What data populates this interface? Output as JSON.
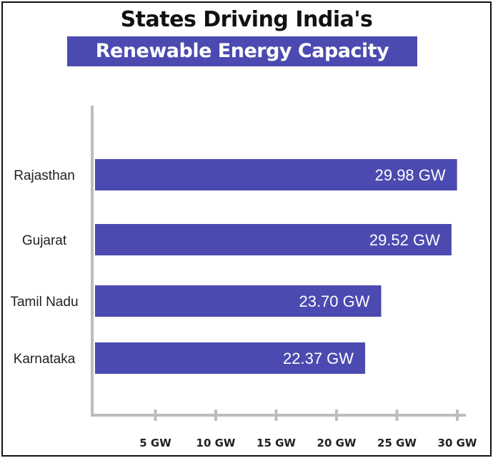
{
  "chart_data": {
    "type": "bar",
    "orientation": "horizontal",
    "title": "States Driving India's",
    "subtitle": "Renewable Energy Capacity",
    "categories": [
      "Rajasthan",
      "Gujarat",
      "Tamil Nadu",
      "Karnataka"
    ],
    "values": [
      29.98,
      29.52,
      23.7,
      22.37
    ],
    "value_labels": [
      "29.98 GW",
      "29.52 GW",
      "23.70 GW",
      "22.37 GW"
    ],
    "x_ticks": [
      5,
      10,
      15,
      20,
      25,
      30
    ],
    "x_tick_labels": [
      "5 GW",
      "10 GW",
      "15 GW",
      "20 GW",
      "25 GW",
      "30 GW"
    ],
    "xlim": [
      0,
      30
    ],
    "xlabel": "",
    "ylabel": "",
    "grid": false,
    "legend": "none",
    "colors": {
      "bar": "#4b4ab0",
      "subtitle_background": "#4b4ab0",
      "axis": "#bdbdbd",
      "text": "#222222"
    }
  }
}
